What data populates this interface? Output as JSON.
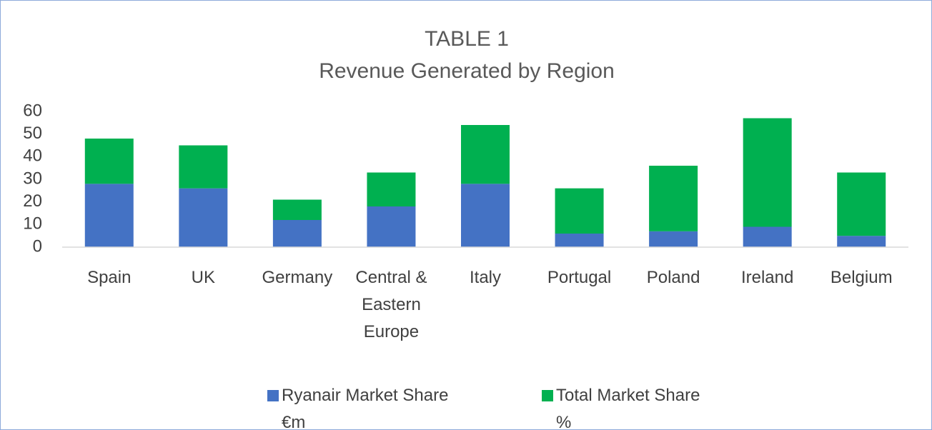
{
  "chart_data": {
    "type": "stacked_bar",
    "title": "TABLE 1",
    "subtitle": "Revenue Generated by Region",
    "categories": [
      "Spain",
      "UK",
      "Germany",
      "Central & Eastern Europe",
      "Italy",
      "Portugal",
      "Poland",
      "Ireland",
      "Belgium"
    ],
    "series": [
      {
        "name": "Ryanair Market Share €m",
        "color": "#4472c4",
        "values": [
          28,
          26,
          12,
          18,
          28,
          6,
          7,
          9,
          5
        ]
      },
      {
        "name": "Total Market Share %",
        "color": "#00b050",
        "values": [
          20,
          19,
          9,
          15,
          26,
          20,
          29,
          48,
          28
        ]
      }
    ],
    "ylim": [
      0,
      60
    ],
    "yticks": [
      0,
      10,
      20,
      30,
      40,
      50,
      60
    ],
    "grid": false,
    "legend": "bottom"
  }
}
